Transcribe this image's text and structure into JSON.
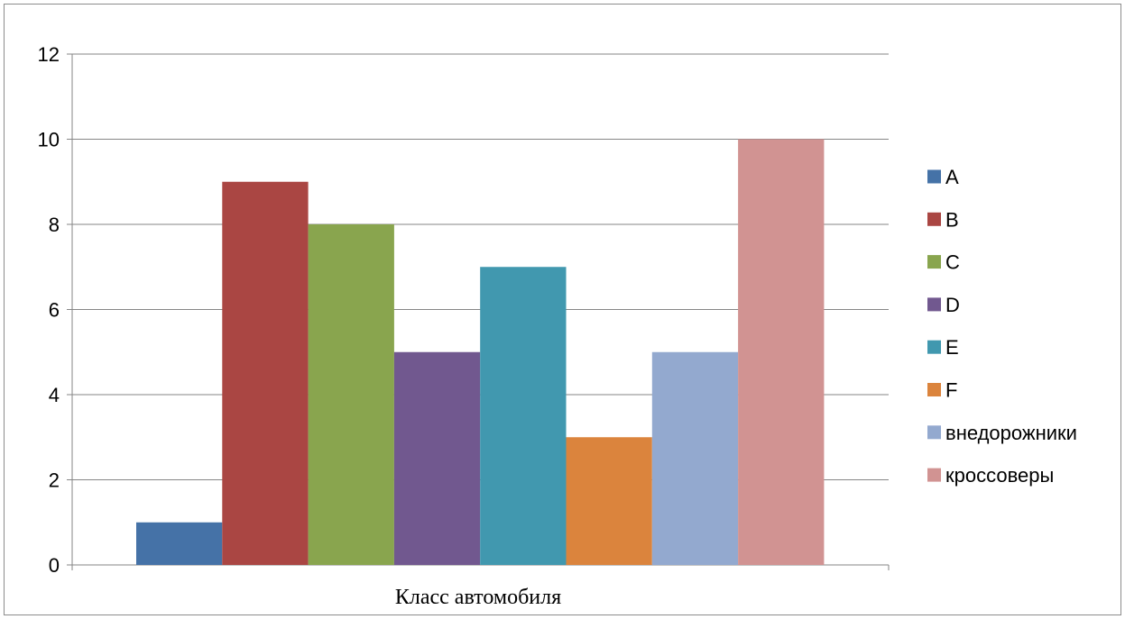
{
  "chart_data": {
    "type": "bar",
    "title": "",
    "xlabel": "Класс автомобиля",
    "ylabel": "",
    "ylim": [
      0,
      12
    ],
    "yticks": [
      0,
      2,
      4,
      6,
      8,
      10,
      12
    ],
    "grid": true,
    "legend_position": "right",
    "series": [
      {
        "name": "A",
        "values": [
          1
        ],
        "color": "#4572A7"
      },
      {
        "name": "B",
        "values": [
          9
        ],
        "color": "#AA4643"
      },
      {
        "name": "C",
        "values": [
          8
        ],
        "color": "#89A54E"
      },
      {
        "name": "D",
        "values": [
          5
        ],
        "color": "#71588F"
      },
      {
        "name": "E",
        "values": [
          7
        ],
        "color": "#4198AF"
      },
      {
        "name": "F",
        "values": [
          3
        ],
        "color": "#DB843D"
      },
      {
        "name": "внедорожники",
        "values": [
          5
        ],
        "color": "#93A9CF"
      },
      {
        "name": "кроссоверы",
        "values": [
          10
        ],
        "color": "#D19392"
      }
    ]
  }
}
